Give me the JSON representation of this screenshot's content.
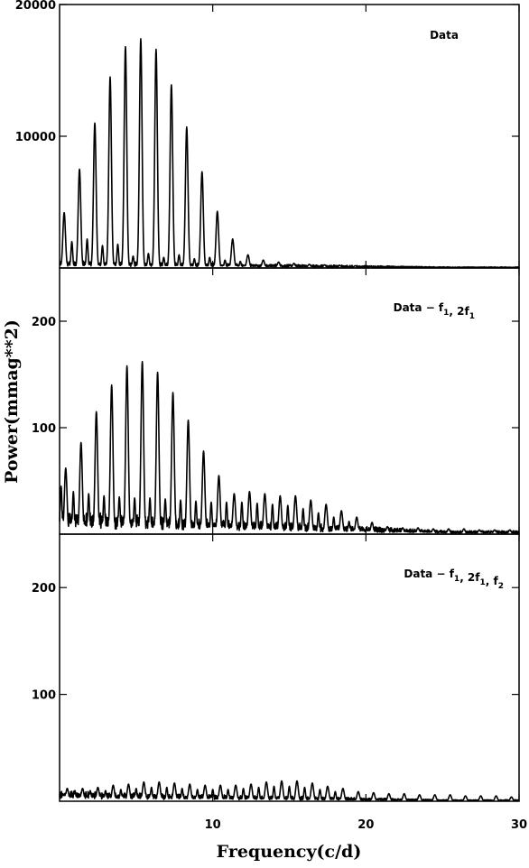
{
  "chart_data": {
    "type": "line",
    "title": "",
    "xlabel": "Frequency(c/d)",
    "ylabel": "Power(mmag**2)",
    "xlim": [
      0,
      30
    ],
    "x_ticks": [
      10,
      20,
      30
    ],
    "x_tick_labels": [
      "10",
      "20",
      "30"
    ],
    "grid": false,
    "panels": [
      {
        "annotation": {
          "parts": [
            [
              "Data",
              ""
            ]
          ]
        },
        "ylim": [
          0,
          20000
        ],
        "y_ticks": [
          10000,
          20000
        ],
        "y_tick_labels": [
          "10000",
          "20000"
        ],
        "series": [
          {
            "peaks_frequency": [
              0.3,
              1.3,
              2.3,
              3.3,
              4.3,
              5.3,
              6.3,
              7.3,
              8.3,
              9.3,
              10.3,
              11.3,
              12.3,
              13.3,
              14.3,
              15.3,
              16.3,
              17.3,
              18.3,
              19.3,
              20.3
            ],
            "peaks_power": [
              4200,
              7500,
              11000,
              14500,
              16800,
              17400,
              16600,
              13900,
              10700,
              7300,
              4300,
              2200,
              1000,
              600,
              450,
              350,
              280,
              240,
              200,
              170,
              130
            ],
            "minor_peaks_frequency": [
              0.8,
              1.8,
              2.8,
              3.8,
              4.8,
              5.8,
              6.8,
              7.8,
              8.8,
              9.8,
              10.8,
              11.8
            ],
            "minor_peaks_power": [
              2000,
              2200,
              1700,
              1800,
              900,
              1100,
              800,
              1000,
              700,
              800,
              600,
              500
            ],
            "noise_floor": 400
          }
        ]
      },
      {
        "annotation": {
          "parts": [
            [
              "Data − f",
              "1"
            ],
            [
              ", 2f",
              "1"
            ]
          ]
        },
        "ylim": [
          0,
          250
        ],
        "y_ticks": [
          100,
          200
        ],
        "y_tick_labels": [
          "100",
          "200"
        ],
        "series": [
          {
            "peaks_frequency": [
              0.4,
              1.4,
              2.4,
              3.4,
              4.4,
              5.4,
              6.4,
              7.4,
              8.4,
              9.4,
              10.4,
              11.4,
              12.4,
              13.4,
              14.4,
              15.4,
              16.4,
              17.4,
              18.4,
              19.4,
              20.4,
              21.4,
              22.4,
              23.4,
              24.4,
              25.4,
              26.4,
              27.4,
              28.4,
              29.4
            ],
            "peaks_power": [
              62,
              86,
              115,
              140,
              158,
              162,
              152,
              133,
              107,
              78,
              55,
              38,
              40,
              38,
              36,
              36,
              32,
              28,
              22,
              16,
              11,
              7,
              6,
              6,
              5,
              5,
              5,
              4,
              4,
              4
            ],
            "minor_peaks_frequency": [
              0.1,
              0.9,
              1.9,
              2.9,
              3.9,
              4.9,
              5.9,
              6.9,
              7.9,
              8.9,
              9.9,
              10.9,
              11.9,
              12.9,
              13.9,
              14.9,
              15.9,
              16.9,
              17.9,
              18.9
            ],
            "minor_peaks_power": [
              45,
              40,
              38,
              36,
              35,
              34,
              34,
              33,
              32,
              31,
              30,
              30,
              30,
              29,
              28,
              27,
              24,
              20,
              16,
              12
            ],
            "noise_floor": 16
          }
        ]
      },
      {
        "annotation": {
          "parts": [
            [
              "Data − f",
              "1"
            ],
            [
              ", 2f",
              "1"
            ],
            [
              ", f",
              "2"
            ]
          ]
        },
        "ylim": [
          0,
          250
        ],
        "y_ticks": [
          100,
          200
        ],
        "y_tick_labels": [
          "100",
          "200"
        ],
        "series": [
          {
            "peaks_frequency": [
              0.5,
              1.5,
              2.5,
              3.5,
              4.5,
              5.5,
              6.5,
              7.5,
              8.5,
              9.5,
              10.5,
              11.5,
              12.5,
              13.5,
              14.5,
              15.5,
              16.5,
              17.5,
              18.5,
              19.5,
              20.5,
              21.5,
              22.5,
              23.5,
              24.5,
              25.5,
              26.5,
              27.5,
              28.5,
              29.5
            ],
            "peaks_power": [
              12,
              12,
              13,
              15,
              16,
              18,
              18,
              17,
              16,
              15,
              15,
              15,
              16,
              18,
              19,
              19,
              17,
              14,
              12,
              9,
              8,
              7,
              7,
              6,
              6,
              6,
              5,
              5,
              5,
              4
            ],
            "minor_peaks_frequency": [
              1.0,
              2.0,
              3.0,
              4.0,
              5.0,
              6.0,
              7.0,
              8.0,
              9.0,
              10.0,
              11.0,
              12.0,
              13.0,
              14.0,
              15.0,
              16.0,
              17.0,
              18.0
            ],
            "minor_peaks_power": [
              10,
              10,
              10,
              11,
              12,
              13,
              13,
              12,
              11,
              11,
              11,
              12,
              13,
              14,
              14,
              13,
              11,
              9
            ],
            "noise_floor": 7
          }
        ]
      }
    ]
  }
}
